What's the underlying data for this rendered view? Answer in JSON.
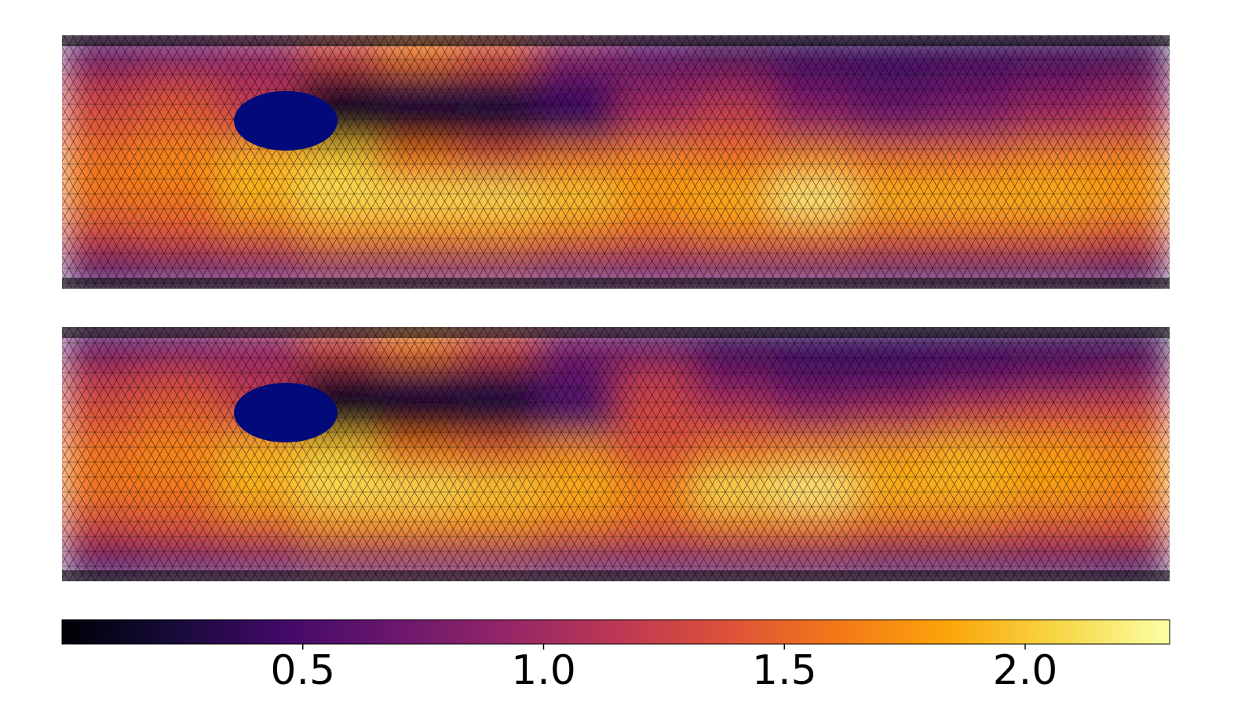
{
  "chart_data": {
    "type": "heatmap",
    "colormap": "inferno",
    "mesh": true,
    "panels": [
      {
        "values": [
          [
            0.6,
            0.7,
            0.9,
            1.3,
            1.6,
            1.4,
            0.9,
            0.6,
            0.4,
            0.4,
            0.4,
            0.4,
            0.4,
            0.4
          ],
          [
            1.2,
            1.3,
            1.1,
            0.2,
            0.3,
            0.3,
            0.5,
            0.9,
            1.0,
            0.7,
            0.6,
            0.7,
            0.8,
            0.9
          ],
          [
            1.4,
            1.5,
            1.3,
            0.1,
            0.1,
            0.2,
            0.4,
            1.1,
            1.3,
            1.0,
            0.8,
            0.9,
            1.1,
            1.2
          ],
          [
            1.6,
            1.7,
            1.9,
            2.0,
            1.6,
            1.4,
            1.6,
            1.7,
            1.6,
            1.7,
            1.6,
            1.6,
            1.7,
            1.7
          ],
          [
            1.6,
            1.6,
            1.9,
            2.1,
            2.1,
            2.1,
            2.0,
            1.8,
            1.9,
            2.2,
            1.9,
            1.9,
            1.9,
            1.8
          ],
          [
            1.3,
            1.4,
            1.5,
            1.7,
            1.7,
            1.7,
            1.6,
            1.5,
            1.6,
            1.6,
            1.5,
            1.5,
            1.5,
            1.4
          ],
          [
            0.5,
            0.6,
            0.7,
            0.8,
            0.8,
            0.8,
            0.7,
            0.7,
            0.7,
            0.7,
            0.6,
            0.6,
            0.6,
            0.5
          ]
        ]
      },
      {
        "values": [
          [
            0.6,
            0.7,
            0.9,
            1.3,
            1.6,
            1.3,
            0.8,
            0.6,
            0.4,
            0.4,
            0.4,
            0.4,
            0.4,
            0.4
          ],
          [
            1.2,
            1.3,
            1.1,
            0.2,
            0.3,
            0.3,
            0.6,
            1.2,
            0.8,
            0.6,
            0.6,
            0.7,
            0.8,
            0.9
          ],
          [
            1.4,
            1.5,
            1.3,
            0.1,
            0.1,
            0.2,
            0.5,
            1.3,
            1.2,
            1.0,
            1.1,
            1.3,
            1.4,
            1.4
          ],
          [
            1.6,
            1.7,
            1.9,
            2.0,
            1.6,
            1.5,
            1.7,
            1.4,
            1.6,
            1.7,
            1.8,
            1.9,
            1.8,
            1.7
          ],
          [
            1.6,
            1.6,
            1.9,
            2.1,
            2.1,
            2.0,
            1.9,
            1.7,
            2.1,
            2.2,
            1.9,
            1.9,
            1.8,
            1.7
          ],
          [
            1.3,
            1.4,
            1.5,
            1.7,
            1.7,
            1.7,
            1.6,
            1.5,
            1.6,
            1.6,
            1.5,
            1.5,
            1.4,
            1.4
          ],
          [
            0.5,
            0.6,
            0.7,
            0.8,
            0.8,
            0.8,
            0.7,
            0.7,
            0.7,
            0.7,
            0.6,
            0.6,
            0.6,
            0.5
          ]
        ]
      }
    ],
    "colorbar": {
      "xlim": [
        0,
        2.3
      ],
      "xticks": [
        0.5,
        {
          "value": 1,
          "label": "1.0"
        },
        1.5,
        {
          "value": 2,
          "label": "2.0"
        }
      ]
    }
  }
}
